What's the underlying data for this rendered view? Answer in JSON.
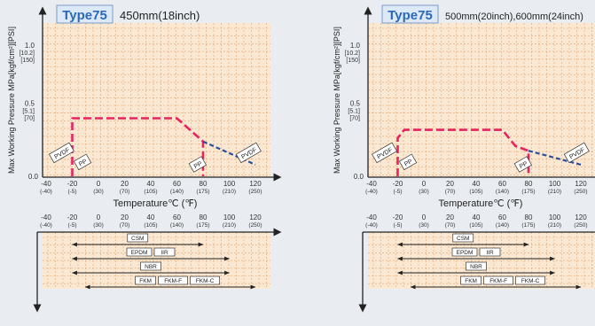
{
  "colors": {
    "plot_bg": "#fbe8d2",
    "grid": "#e3a36d",
    "pink_line": "#e8245f",
    "blue_line": "#2b4f9c",
    "title_box_bg": "#dde9f6",
    "title_box_border": "#7a9bc8",
    "title_text": "#2a69b8",
    "axis": "#222222"
  },
  "chart_data": [
    {
      "type": "line",
      "badge": "Type75",
      "title": "450mm(18inch)",
      "ylabel": "Max Working Pressure MPa[kgf/cm²][PSI]",
      "xlabel": "Temperature℃ (℉)",
      "xlim": [
        -40,
        130
      ],
      "ylim": [
        0,
        1.3
      ],
      "y_ticks": [
        {
          "value": 1.0,
          "label": "1.0",
          "sub1": "[10.2]",
          "sub2": "[150]"
        },
        {
          "value": 0.5,
          "label": "0.5",
          "sub1": "[5.1]",
          "sub2": "[70]"
        },
        {
          "value": 0.0,
          "label": "0.0",
          "sub1": "",
          "sub2": ""
        }
      ],
      "x_ticks": [
        {
          "value": -40,
          "c": "-40",
          "f": "(-40)"
        },
        {
          "value": -20,
          "c": "-20",
          "f": "(-5)"
        },
        {
          "value": 0,
          "c": "0",
          "f": "(30)"
        },
        {
          "value": 20,
          "c": "20",
          "f": "(70)"
        },
        {
          "value": 40,
          "c": "40",
          "f": "(105)"
        },
        {
          "value": 60,
          "c": "60",
          "f": "(140)"
        },
        {
          "value": 80,
          "c": "80",
          "f": "(175)"
        },
        {
          "value": 100,
          "c": "100",
          "f": "(210)"
        },
        {
          "value": 120,
          "c": "120",
          "f": "(250)"
        }
      ],
      "series": [
        {
          "name": "PP",
          "x": [
            -20,
            -20,
            60,
            80,
            80
          ],
          "y": [
            0,
            0.5,
            0.5,
            0.3,
            0
          ],
          "dash": "long"
        },
        {
          "name": "PVDF",
          "x": [
            80,
            120
          ],
          "y": [
            0.3,
            0.1
          ],
          "dash": "short"
        }
      ],
      "annotations": [
        {
          "text": "PVDF",
          "x": -28,
          "y": 0.2
        },
        {
          "text": "PP",
          "x": -12,
          "y": 0.12
        },
        {
          "text": "PP",
          "x": 76,
          "y": 0.1
        },
        {
          "text": "PVDF",
          "x": 115,
          "y": 0.2
        }
      ],
      "seal_ranges": [
        {
          "labels": [
            "CSM"
          ],
          "from": -20,
          "to": 80
        },
        {
          "labels": [
            "EPDM",
            "IIR"
          ],
          "from": -20,
          "to": 100
        },
        {
          "labels": [
            "NBR"
          ],
          "from": -20,
          "to": 100
        },
        {
          "labels": [
            "FKM",
            "FKM-F",
            "FKM-C"
          ],
          "from": -10,
          "to": 120
        }
      ]
    },
    {
      "type": "line",
      "badge": "Type75",
      "title": "500mm(20inch),600mm(24inch)",
      "ylabel": "Max Working Pressure MPa[kgf/cm²][PSI]",
      "xlabel": "Temperature℃ (℉)",
      "xlim": [
        -40,
        130
      ],
      "ylim": [
        0,
        1.3
      ],
      "y_ticks": [
        {
          "value": 1.0,
          "label": "1.0",
          "sub1": "[10.2]",
          "sub2": "[150]"
        },
        {
          "value": 0.5,
          "label": "0.5",
          "sub1": "[5.1]",
          "sub2": "[70]"
        },
        {
          "value": 0.0,
          "label": "0.0",
          "sub1": "",
          "sub2": ""
        }
      ],
      "x_ticks": [
        {
          "value": -40,
          "c": "-40",
          "f": "(-40)"
        },
        {
          "value": -20,
          "c": "-20",
          "f": "(-5)"
        },
        {
          "value": 0,
          "c": "0",
          "f": "(30)"
        },
        {
          "value": 20,
          "c": "20",
          "f": "(70)"
        },
        {
          "value": 40,
          "c": "40",
          "f": "(105)"
        },
        {
          "value": 60,
          "c": "60",
          "f": "(140)"
        },
        {
          "value": 80,
          "c": "80",
          "f": "(175)"
        },
        {
          "value": 100,
          "c": "100",
          "f": "(210)"
        },
        {
          "value": 120,
          "c": "120",
          "f": "(250)"
        }
      ],
      "series": [
        {
          "name": "PP",
          "x": [
            -20,
            -20,
            -15,
            60,
            70,
            80,
            80
          ],
          "y": [
            0,
            0.33,
            0.4,
            0.4,
            0.26,
            0.22,
            0
          ],
          "dash": "long"
        },
        {
          "name": "PVDF",
          "x": [
            80,
            120
          ],
          "y": [
            0.22,
            0.1
          ],
          "dash": "short"
        }
      ],
      "annotations": [
        {
          "text": "PVDF",
          "x": -30,
          "y": 0.2
        },
        {
          "text": "PP",
          "x": -12,
          "y": 0.12
        },
        {
          "text": "PP",
          "x": 76,
          "y": 0.1
        },
        {
          "text": "PVDF",
          "x": 117,
          "y": 0.2
        }
      ],
      "seal_ranges": [
        {
          "labels": [
            "CSM"
          ],
          "from": -20,
          "to": 80
        },
        {
          "labels": [
            "EPDM",
            "IIR"
          ],
          "from": -20,
          "to": 100
        },
        {
          "labels": [
            "NBR"
          ],
          "from": -20,
          "to": 100
        },
        {
          "labels": [
            "FKM",
            "FKM-F",
            "FKM-C"
          ],
          "from": -10,
          "to": 120
        }
      ]
    }
  ]
}
